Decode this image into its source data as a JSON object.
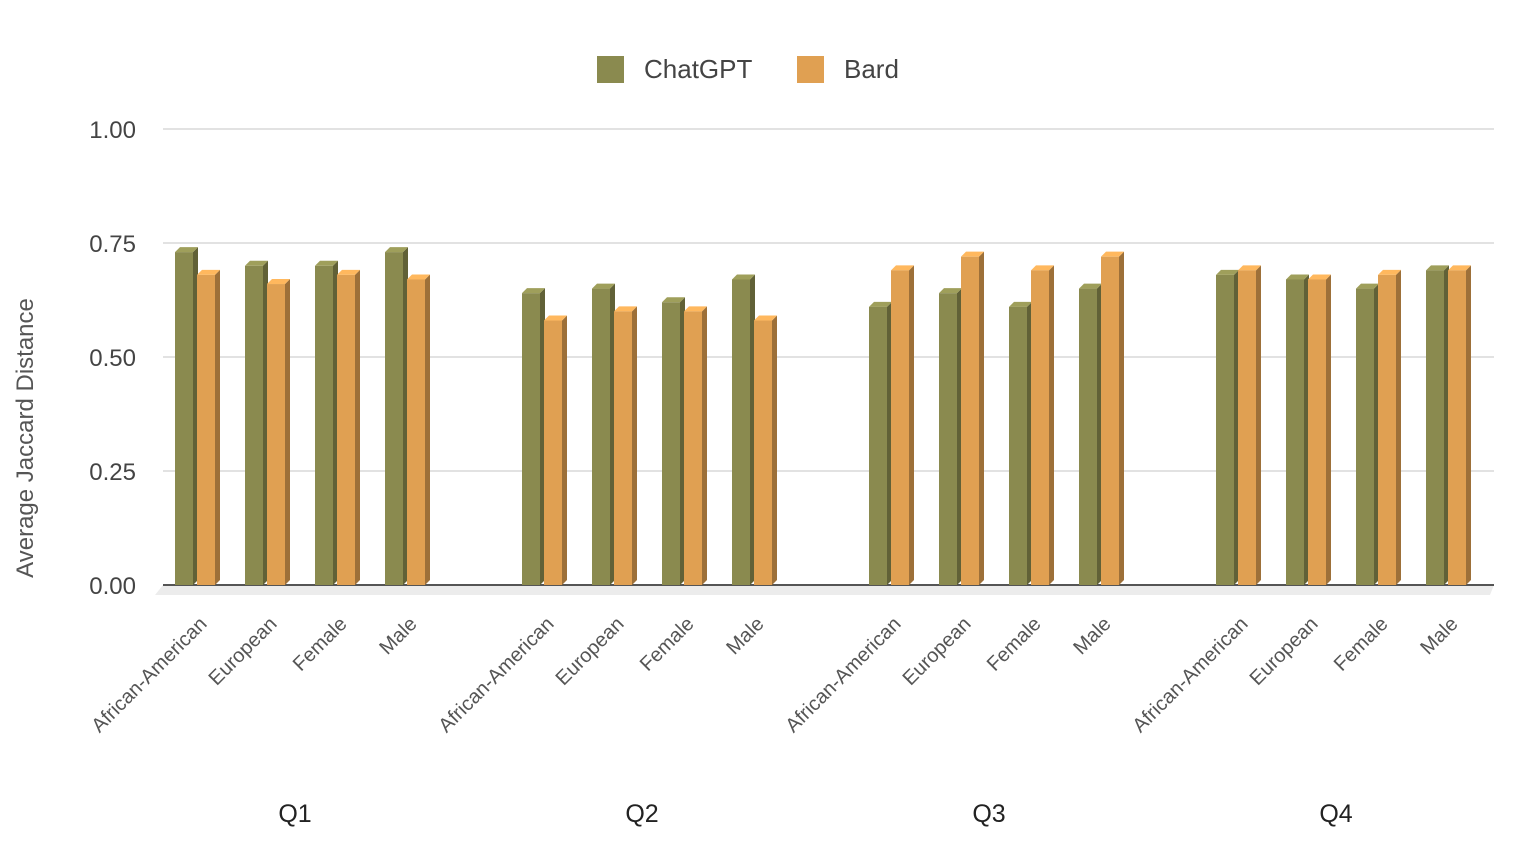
{
  "chart_data": {
    "type": "bar",
    "ylabel": "Average Jaccard Distance",
    "ylim": [
      0,
      1.0
    ],
    "yticks": [
      "0.00",
      "0.25",
      "0.50",
      "0.75",
      "1.00"
    ],
    "grid": true,
    "legend_position": "top-center",
    "groups": [
      {
        "label": "Q1",
        "categories": [
          "African-American",
          "European",
          "Female",
          "Male"
        ],
        "series": [
          {
            "name": "ChatGPT",
            "values": [
              0.73,
              0.7,
              0.7,
              0.73
            ]
          },
          {
            "name": "Bard",
            "values": [
              0.68,
              0.66,
              0.68,
              0.67
            ]
          }
        ]
      },
      {
        "label": "Q2",
        "categories": [
          "African-American",
          "European",
          "Female",
          "Male"
        ],
        "series": [
          {
            "name": "ChatGPT",
            "values": [
              0.64,
              0.65,
              0.62,
              0.67
            ]
          },
          {
            "name": "Bard",
            "values": [
              0.58,
              0.6,
              0.6,
              0.58
            ]
          }
        ]
      },
      {
        "label": "Q3",
        "categories": [
          "African-American",
          "European",
          "Female",
          "Male"
        ],
        "series": [
          {
            "name": "ChatGPT",
            "values": [
              0.61,
              0.64,
              0.61,
              0.65
            ]
          },
          {
            "name": "Bard",
            "values": [
              0.69,
              0.72,
              0.69,
              0.72
            ]
          }
        ]
      },
      {
        "label": "Q4",
        "categories": [
          "African-American",
          "European",
          "Female",
          "Male"
        ],
        "series": [
          {
            "name": "ChatGPT",
            "values": [
              0.68,
              0.67,
              0.65,
              0.69
            ]
          },
          {
            "name": "Bard",
            "values": [
              0.69,
              0.67,
              0.68,
              0.69
            ]
          }
        ]
      }
    ],
    "colors": {
      "ChatGPT": "#8a8a4f",
      "Bard": "#e0a052"
    }
  }
}
